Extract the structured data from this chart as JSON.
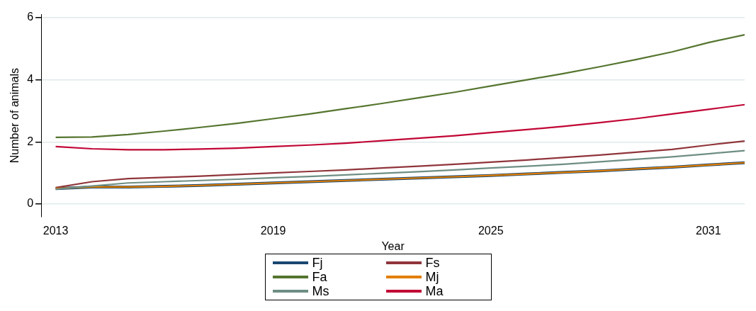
{
  "chart_data": {
    "type": "line",
    "xlabel": "Year",
    "ylabel": "Number of animals",
    "x": [
      2013,
      2014,
      2015,
      2016,
      2017,
      2018,
      2019,
      2020,
      2021,
      2022,
      2023,
      2024,
      2025,
      2026,
      2027,
      2028,
      2029,
      2030,
      2031,
      2032
    ],
    "xlim": [
      2012.6,
      2032
    ],
    "xticks": [
      2013,
      2019,
      2025,
      2031
    ],
    "ylim": [
      -0.4,
      6.1
    ],
    "yticks": [
      0,
      2,
      4,
      6
    ],
    "grid": "y",
    "legend": "bottom",
    "marker": "none",
    "line_style": "solid",
    "series": [
      {
        "name": "Fj",
        "color": "#1a476f",
        "values": [
          0.5,
          0.55,
          0.55,
          0.57,
          0.6,
          0.64,
          0.68,
          0.72,
          0.76,
          0.8,
          0.84,
          0.88,
          0.92,
          0.97,
          1.02,
          1.07,
          1.13,
          1.19,
          1.26,
          1.33
        ]
      },
      {
        "name": "Fs",
        "color": "#90353b",
        "values": [
          0.53,
          0.72,
          0.82,
          0.86,
          0.9,
          0.95,
          1.0,
          1.05,
          1.1,
          1.16,
          1.22,
          1.28,
          1.35,
          1.42,
          1.5,
          1.58,
          1.67,
          1.76,
          1.9,
          2.03
        ]
      },
      {
        "name": "Fa",
        "color": "#55752f",
        "values": [
          2.15,
          2.16,
          2.24,
          2.35,
          2.47,
          2.6,
          2.75,
          2.9,
          3.07,
          3.24,
          3.42,
          3.6,
          3.8,
          4.0,
          4.2,
          4.42,
          4.65,
          4.9,
          5.2,
          5.45
        ]
      },
      {
        "name": "Mj",
        "color": "#e37e00",
        "values": [
          0.5,
          0.55,
          0.55,
          0.57,
          0.6,
          0.64,
          0.68,
          0.72,
          0.76,
          0.8,
          0.84,
          0.88,
          0.92,
          0.97,
          1.02,
          1.07,
          1.13,
          1.19,
          1.26,
          1.33
        ]
      },
      {
        "name": "Ms",
        "color": "#6e8e84",
        "values": [
          0.48,
          0.58,
          0.68,
          0.72,
          0.76,
          0.8,
          0.85,
          0.89,
          0.94,
          0.99,
          1.04,
          1.1,
          1.16,
          1.22,
          1.28,
          1.36,
          1.44,
          1.52,
          1.62,
          1.72
        ]
      },
      {
        "name": "Ma",
        "color": "#c10534",
        "values": [
          1.85,
          1.78,
          1.75,
          1.75,
          1.77,
          1.8,
          1.85,
          1.9,
          1.96,
          2.04,
          2.12,
          2.2,
          2.3,
          2.4,
          2.5,
          2.62,
          2.75,
          2.9,
          3.05,
          3.2
        ]
      }
    ]
  }
}
